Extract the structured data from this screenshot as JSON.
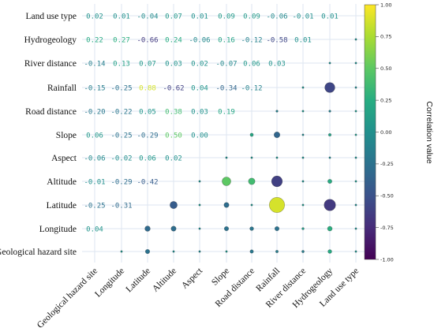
{
  "chart_data": {
    "type": "heatmap",
    "title": "",
    "variables_rows": [
      "Land use type",
      "Hydrogeology",
      "River distance",
      "Rainfall",
      "Road distance",
      "Slope",
      "Aspect",
      "Altitude",
      "Latitude",
      "Longitude",
      "Geological hazard site"
    ],
    "variables_cols": [
      "Geological hazard site",
      "Longitude",
      "Latitude",
      "Altitude",
      "Aspect",
      "Slope",
      "Road distance",
      "Rainfall",
      "River distance",
      "Hydrogeology",
      "Land use type"
    ],
    "upper_values_text": [
      [
        "0.02",
        "0.01",
        "-0.04",
        "0.07",
        "0.01",
        "0.09",
        "0.09",
        "-0.06",
        "-0.01",
        "0.01"
      ],
      [
        "0.22",
        "0.27",
        "-0.66",
        "0.24",
        "-0.06",
        "0.16",
        "-0.12",
        "-0.58",
        "0.01"
      ],
      [
        "-0.14",
        "0.13",
        "0.07",
        "0.03",
        "0.02",
        "-0.07",
        "0.06",
        "0.03"
      ],
      [
        "-0.15",
        "-0.25",
        "0.88",
        "-0.62",
        "0.04",
        "-0.34",
        "-0.12"
      ],
      [
        "-0.20",
        "-0.22",
        "0.05",
        "0.38",
        "0.03",
        "0.19"
      ],
      [
        "0.06",
        "-0.25",
        "-0.29",
        "0.50",
        "0.00"
      ],
      [
        "-0.06",
        "-0.02",
        "0.06",
        "0.02"
      ],
      [
        "-0.01",
        "-0.29",
        "-0.42"
      ],
      [
        "-0.25",
        "-0.31"
      ],
      [
        "0.04"
      ],
      []
    ],
    "colorbar": {
      "label": "Correlation value",
      "min": -1.0,
      "max": 1.0,
      "ticks": [
        "1.00",
        "0.75",
        "0.50",
        "0.25",
        "0.00",
        "-0.25",
        "-0.50",
        "-0.75",
        "-1.00"
      ],
      "colormap": "viridis"
    }
  }
}
